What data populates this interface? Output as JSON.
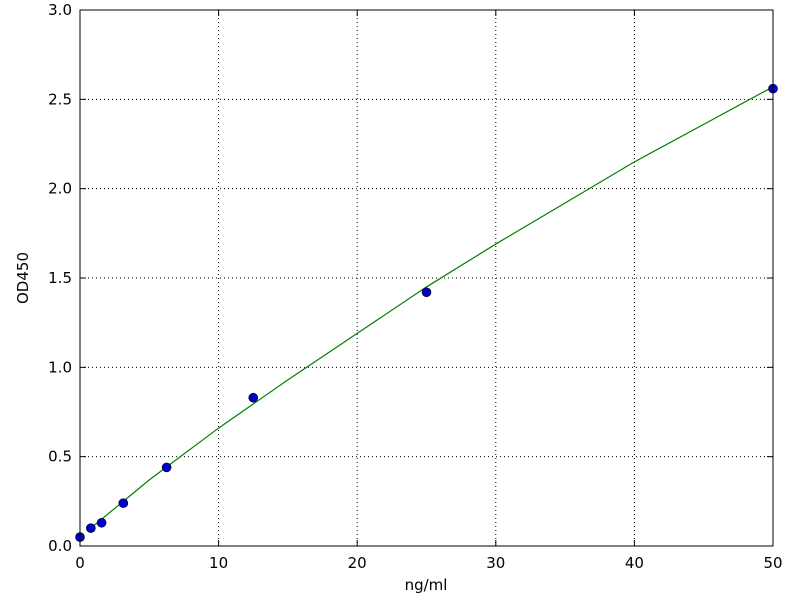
{
  "chart_data": {
    "type": "scatter",
    "xlabel": "ng/ml",
    "ylabel": "OD450",
    "xlim": [
      0,
      50
    ],
    "xticks": [
      0,
      10,
      20,
      30,
      40,
      50
    ],
    "ylim": [
      0,
      3
    ],
    "yticks": [
      {
        "value": 0,
        "label": "0.0"
      },
      0.5,
      {
        "value": 1,
        "label": "1.0"
      },
      1.5,
      {
        "value": 2,
        "label": "2.0"
      },
      2.5,
      {
        "value": 3,
        "label": "3.0"
      }
    ],
    "grid": true,
    "series": [
      {
        "type": "line",
        "color": "#008000",
        "x": [
          0.78,
          5,
          10,
          15,
          20,
          25,
          30,
          35,
          40,
          45,
          50
        ],
        "values": [
          0.1,
          0.37,
          0.66,
          0.93,
          1.19,
          1.45,
          1.69,
          1.92,
          2.15,
          2.36,
          2.57
        ]
      },
      {
        "type": "scatter",
        "color": "#0000cc",
        "x": [
          0,
          0.78,
          1.56,
          3.125,
          6.25,
          12.5,
          25,
          50
        ],
        "values": [
          0.05,
          0.1,
          0.13,
          0.24,
          0.44,
          0.83,
          1.42,
          2.56
        ]
      }
    ]
  }
}
